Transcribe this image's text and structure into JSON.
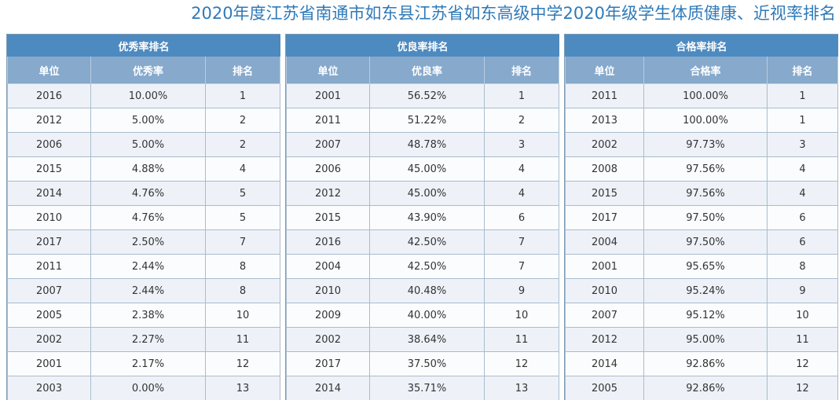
{
  "title": "2020年度江苏省南通市如东县江苏省如东高级中学2020年级学生体质健康、近视率排名",
  "tables": [
    {
      "caption": "优秀率排名",
      "headers": [
        "单位",
        "优秀率",
        "排名"
      ],
      "rows": [
        [
          "2016",
          "10.00%",
          "1"
        ],
        [
          "2012",
          "5.00%",
          "2"
        ],
        [
          "2006",
          "5.00%",
          "2"
        ],
        [
          "2015",
          "4.88%",
          "4"
        ],
        [
          "2014",
          "4.76%",
          "5"
        ],
        [
          "2010",
          "4.76%",
          "5"
        ],
        [
          "2017",
          "2.50%",
          "7"
        ],
        [
          "2011",
          "2.44%",
          "8"
        ],
        [
          "2007",
          "2.44%",
          "8"
        ],
        [
          "2005",
          "2.38%",
          "10"
        ],
        [
          "2002",
          "2.27%",
          "11"
        ],
        [
          "2001",
          "2.17%",
          "12"
        ],
        [
          "2003",
          "0.00%",
          "13"
        ]
      ]
    },
    {
      "caption": "优良率排名",
      "headers": [
        "单位",
        "优良率",
        "排名"
      ],
      "rows": [
        [
          "2001",
          "56.52%",
          "1"
        ],
        [
          "2011",
          "51.22%",
          "2"
        ],
        [
          "2007",
          "48.78%",
          "3"
        ],
        [
          "2006",
          "45.00%",
          "4"
        ],
        [
          "2012",
          "45.00%",
          "4"
        ],
        [
          "2015",
          "43.90%",
          "6"
        ],
        [
          "2016",
          "42.50%",
          "7"
        ],
        [
          "2004",
          "42.50%",
          "7"
        ],
        [
          "2010",
          "40.48%",
          "9"
        ],
        [
          "2009",
          "40.00%",
          "10"
        ],
        [
          "2002",
          "38.64%",
          "11"
        ],
        [
          "2017",
          "37.50%",
          "12"
        ],
        [
          "2014",
          "35.71%",
          "13"
        ]
      ]
    },
    {
      "caption": "合格率排名",
      "headers": [
        "单位",
        "合格率",
        "排名"
      ],
      "rows": [
        [
          "2011",
          "100.00%",
          "1"
        ],
        [
          "2013",
          "100.00%",
          "1"
        ],
        [
          "2002",
          "97.73%",
          "3"
        ],
        [
          "2008",
          "97.56%",
          "4"
        ],
        [
          "2015",
          "97.56%",
          "4"
        ],
        [
          "2017",
          "97.50%",
          "6"
        ],
        [
          "2004",
          "97.50%",
          "6"
        ],
        [
          "2001",
          "95.65%",
          "8"
        ],
        [
          "2010",
          "95.24%",
          "9"
        ],
        [
          "2007",
          "95.12%",
          "10"
        ],
        [
          "2012",
          "95.00%",
          "11"
        ],
        [
          "2014",
          "92.86%",
          "12"
        ],
        [
          "2005",
          "92.86%",
          "12"
        ]
      ]
    }
  ]
}
